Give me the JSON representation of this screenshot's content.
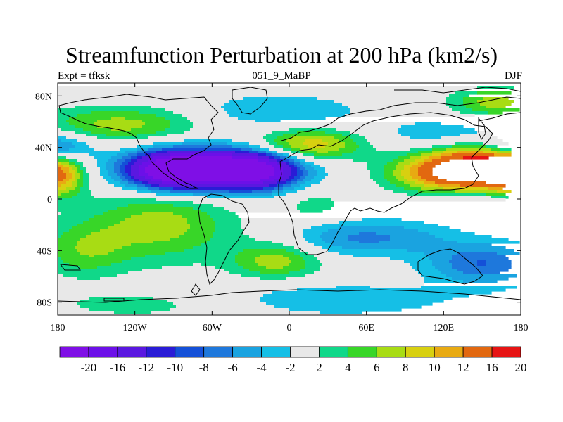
{
  "chart_data": {
    "type": "heatmap",
    "title": "Streamfunction Perturbation at 200 hPa (km2/s)",
    "subtitle_left": "Expt = tfksk",
    "subtitle_center": "051_9_MaBP",
    "subtitle_right": "DJF",
    "xlim": [
      -180,
      180
    ],
    "ylim": [
      -90,
      90
    ],
    "x_ticks": [
      {
        "value": -180,
        "label": "180"
      },
      {
        "value": -120,
        "label": "120W"
      },
      {
        "value": -60,
        "label": "60W"
      },
      {
        "value": 0,
        "label": "0"
      },
      {
        "value": 60,
        "label": "60E"
      },
      {
        "value": 120,
        "label": "120E"
      },
      {
        "value": 180,
        "label": "180"
      }
    ],
    "y_ticks": [
      {
        "value": 80,
        "label": "80N"
      },
      {
        "value": 40,
        "label": "40N"
      },
      {
        "value": 0,
        "label": "0"
      },
      {
        "value": -40,
        "label": "40S"
      },
      {
        "value": -80,
        "label": "80S"
      }
    ],
    "colorbar": {
      "colors": [
        "#7f0fe6",
        "#6c10e8",
        "#5a18e0",
        "#2a1cd6",
        "#1450d8",
        "#1e78dc",
        "#1aa3e0",
        "#15bfe6",
        "#e8e8e8",
        "#10d889",
        "#38d628",
        "#a8dc14",
        "#d8d010",
        "#e8aa12",
        "#e26810",
        "#e61414"
      ],
      "labels": [
        "-20",
        "-16",
        "-12",
        "-10",
        "-8",
        "-6",
        "-4",
        "-2",
        "2",
        "4",
        "6",
        "8",
        "10",
        "12",
        "16",
        "20"
      ],
      "levels": [
        -20,
        -16,
        -12,
        -10,
        -8,
        -6,
        -4,
        -2,
        2,
        4,
        6,
        8,
        10,
        12,
        16,
        20
      ]
    },
    "field_features": [
      {
        "lon": -90,
        "lat": 22,
        "value": -21,
        "sx": 25,
        "sy": 10
      },
      {
        "lon": -30,
        "lat": 22,
        "value": -19,
        "sx": 25,
        "sy": 10
      },
      {
        "lon": -60,
        "lat": 24,
        "value": -12,
        "sx": 45,
        "sy": 12
      },
      {
        "lon": 150,
        "lat": 24,
        "value": 20,
        "sx": 30,
        "sy": 12
      },
      {
        "lon": 110,
        "lat": 20,
        "value": 8,
        "sx": 28,
        "sy": 10
      },
      {
        "lon": -180,
        "lat": 20,
        "value": 14,
        "sx": 14,
        "sy": 12
      },
      {
        "lon": 180,
        "lat": 20,
        "value": 14,
        "sx": 14,
        "sy": 12
      },
      {
        "lon": -180,
        "lat": 40,
        "value": -9,
        "sx": 18,
        "sy": 8
      },
      {
        "lon": 180,
        "lat": 40,
        "value": -9,
        "sx": 18,
        "sy": 8
      },
      {
        "lon": 15,
        "lat": 42,
        "value": 10,
        "sx": 30,
        "sy": 9
      },
      {
        "lon": -130,
        "lat": 58,
        "value": 7,
        "sx": 45,
        "sy": 10
      },
      {
        "lon": 160,
        "lat": 75,
        "value": 7,
        "sx": 25,
        "sy": 8
      },
      {
        "lon": -10,
        "lat": 68,
        "value": -4,
        "sx": 50,
        "sy": 10
      },
      {
        "lon": 120,
        "lat": 50,
        "value": -4,
        "sx": 35,
        "sy": 8
      },
      {
        "lon": 150,
        "lat": -50,
        "value": -8,
        "sx": 30,
        "sy": 12
      },
      {
        "lon": 40,
        "lat": -30,
        "value": -5,
        "sx": 30,
        "sy": 10
      },
      {
        "lon": 90,
        "lat": -30,
        "value": -4,
        "sx": 30,
        "sy": 10
      },
      {
        "lon": -100,
        "lat": -20,
        "value": 7,
        "sx": 40,
        "sy": 20
      },
      {
        "lon": -160,
        "lat": -40,
        "value": 5,
        "sx": 25,
        "sy": 15
      },
      {
        "lon": -10,
        "lat": -48,
        "value": 7,
        "sx": 25,
        "sy": 10
      },
      {
        "lon": 20,
        "lat": -5,
        "value": 3,
        "sx": 20,
        "sy": 10
      },
      {
        "lon": 30,
        "lat": -78,
        "value": -4,
        "sx": 70,
        "sy": 9
      },
      {
        "lon": -110,
        "lat": -82,
        "value": 3,
        "sx": 60,
        "sy": 8
      },
      {
        "lon": 150,
        "lat": 0,
        "value": -3,
        "sx": 30,
        "sy": 6
      }
    ]
  }
}
